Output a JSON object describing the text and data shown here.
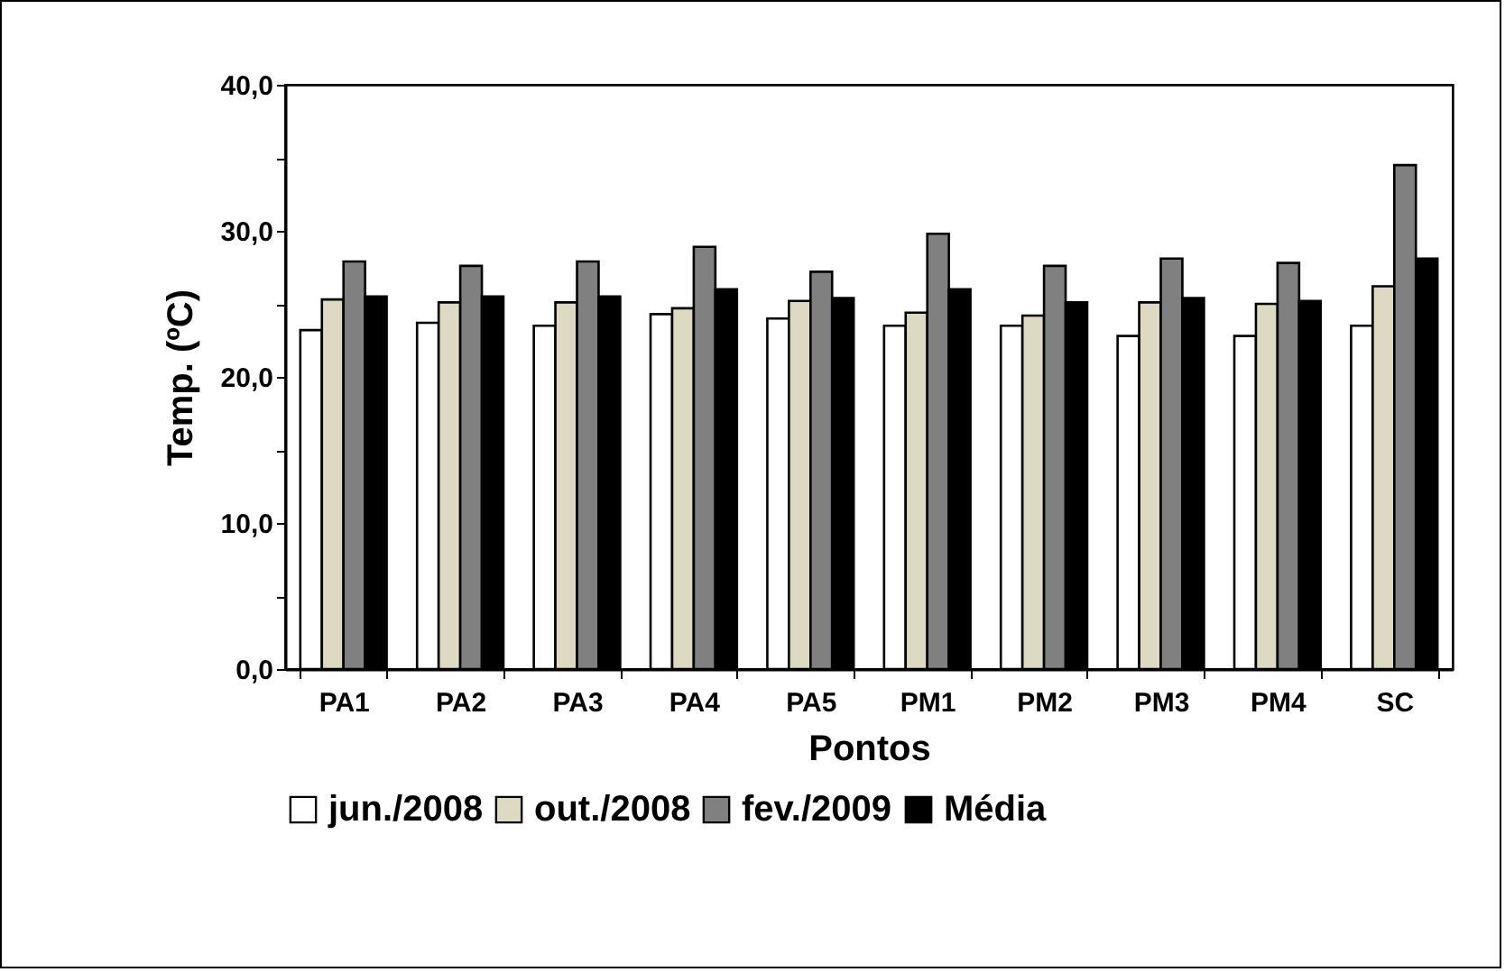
{
  "chart_data": {
    "type": "bar",
    "xlabel": "Pontos",
    "ylabel": "Temp. (ºC)",
    "categories": [
      "PA1",
      "PA2",
      "PA3",
      "PA4",
      "PA5",
      "PM1",
      "PM2",
      "PM3",
      "PM4",
      "SC"
    ],
    "series": [
      {
        "name": "jun./2008",
        "color": "#ffffff",
        "values": [
          23.2,
          23.7,
          23.5,
          24.3,
          24.0,
          23.5,
          23.5,
          22.8,
          22.8,
          23.5
        ]
      },
      {
        "name": "out./2008",
        "color": "#ddd9c3",
        "values": [
          25.3,
          25.1,
          25.1,
          24.7,
          25.2,
          24.4,
          24.2,
          25.1,
          25.0,
          26.2
        ]
      },
      {
        "name": "fev./2009",
        "color": "#808080",
        "values": [
          27.9,
          27.6,
          27.9,
          28.9,
          27.2,
          29.8,
          27.6,
          28.1,
          27.8,
          34.5
        ]
      },
      {
        "name": "Média",
        "color": "#000000",
        "values": [
          25.5,
          25.5,
          25.5,
          26.0,
          25.4,
          26.0,
          25.1,
          25.4,
          25.2,
          28.1
        ]
      }
    ],
    "ylim": [
      0,
      40
    ],
    "yticks": [
      {
        "value": 0,
        "label": "0,0"
      },
      {
        "value": 5,
        "label": null
      },
      {
        "value": 10,
        "label": "10,0"
      },
      {
        "value": 15,
        "label": null
      },
      {
        "value": 20,
        "label": "20,0"
      },
      {
        "value": 25,
        "label": null
      },
      {
        "value": 30,
        "label": "30,0"
      },
      {
        "value": 35,
        "label": null
      },
      {
        "value": 40,
        "label": "40,0"
      }
    ],
    "grid": false,
    "legend": "bottom"
  }
}
